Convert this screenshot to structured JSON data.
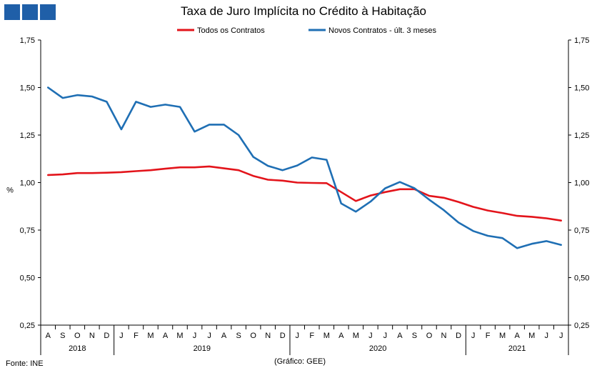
{
  "header": {
    "logo_icon": "gee-logo-squares",
    "title": "Taxa de Juro Implícita no Crédito à Habitação"
  },
  "footer": {
    "source": "Fonte: INE",
    "credit": "(Gráfico: GEE)"
  },
  "chart_data": {
    "type": "line",
    "title": "Taxa de Juro Implícita no Crédito à Habitação",
    "ylabel": "%",
    "ylim": [
      0.25,
      1.75
    ],
    "yticks": [
      "0,25",
      "0,50",
      "0,75",
      "1,00",
      "1,25",
      "1,50",
      "1,75"
    ],
    "ytick_values": [
      0.25,
      0.5,
      0.75,
      1.0,
      1.25,
      1.5,
      1.75
    ],
    "grid": false,
    "legend": "top",
    "x": [
      "A",
      "S",
      "O",
      "N",
      "D",
      "J",
      "F",
      "M",
      "A",
      "M",
      "J",
      "J",
      "A",
      "S",
      "O",
      "N",
      "D",
      "J",
      "F",
      "M",
      "A",
      "M",
      "J",
      "J",
      "A",
      "S",
      "O",
      "N",
      "D",
      "J",
      "F",
      "M",
      "A",
      "M",
      "J",
      "J"
    ],
    "years": [
      {
        "label": "2018",
        "start": 0,
        "end": 4
      },
      {
        "label": "2019",
        "start": 5,
        "end": 16
      },
      {
        "label": "2020",
        "start": 17,
        "end": 28
      },
      {
        "label": "2021",
        "start": 29,
        "end": 35
      }
    ],
    "series": [
      {
        "name": "Todos os Contratos",
        "color": "#e3141b",
        "values": [
          1.04,
          1.043,
          1.05,
          1.05,
          1.052,
          1.055,
          1.06,
          1.065,
          1.073,
          1.08,
          1.08,
          1.085,
          1.075,
          1.065,
          1.035,
          1.015,
          1.01,
          1.0,
          0.998,
          0.997,
          0.95,
          0.903,
          0.932,
          0.95,
          0.965,
          0.965,
          0.93,
          0.92,
          0.898,
          0.872,
          0.853,
          0.84,
          0.825,
          0.82,
          0.812,
          0.8
        ]
      },
      {
        "name": "Novos Contratos - últ. 3 meses",
        "color": "#1f6fb4",
        "values": [
          1.5,
          1.445,
          1.46,
          1.453,
          1.425,
          1.28,
          1.425,
          1.398,
          1.41,
          1.398,
          1.268,
          1.305,
          1.305,
          1.25,
          1.135,
          1.088,
          1.065,
          1.09,
          1.132,
          1.12,
          0.89,
          0.847,
          0.9,
          0.97,
          1.003,
          0.97,
          0.91,
          0.855,
          0.79,
          0.745,
          0.72,
          0.708,
          0.655,
          0.678,
          0.692,
          0.672
        ]
      }
    ]
  }
}
